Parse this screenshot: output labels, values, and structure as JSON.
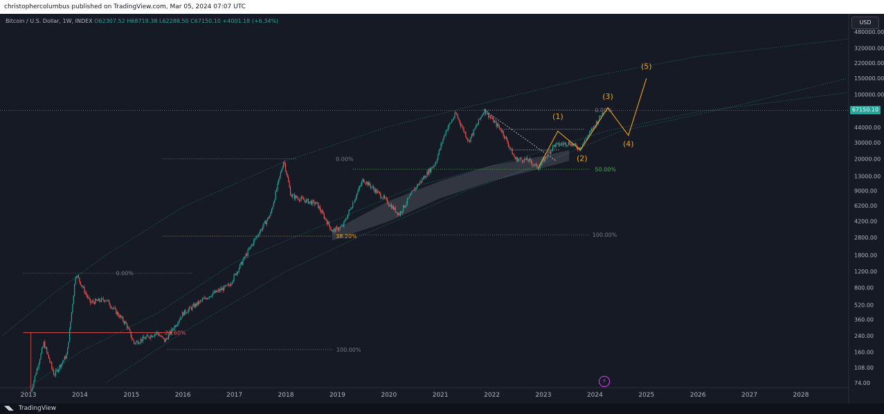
{
  "header": {
    "publisher_line": "christophercolumbus published on TradingView.com, Mar 05, 2024 07:07 UTC"
  },
  "legend": {
    "symbol": "Bitcoin / U.S. Dollar, 1W, INDEX",
    "open": "O62307.52",
    "high": "H68719.38",
    "low": "L62288.50",
    "close": "C67150.10",
    "change": "+4001.18 (+6.34%)"
  },
  "currency_button": "USD",
  "last_price_tag": "67150.10",
  "footer": {
    "brand": "TradingView"
  },
  "colors": {
    "background": "#161a25",
    "candle_up": "#26a69a",
    "candle_down": "#ef5350",
    "fib_gray": "#787b86",
    "fib_orange": "#f7a21b",
    "fib_green": "#4caf50",
    "wave_orange": "#f7a21b",
    "channel_fill": "#b2b5be",
    "price_line": "#26a69a"
  },
  "icons": {
    "flash": "lightning-icon"
  },
  "chart_data": {
    "type": "candlestick",
    "symbol": "Bitcoin / U.S. Dollar, 1W, INDEX",
    "y_scale": "log",
    "x_ticks": [
      "2013",
      "2014",
      "2015",
      "2016",
      "2017",
      "2018",
      "2019",
      "2020",
      "2021",
      "2022",
      "2023",
      "2024",
      "2025",
      "2026",
      "2027",
      "2028"
    ],
    "y_ticks": [
      480000,
      320000,
      220000,
      150000,
      100000,
      67150.1,
      44000,
      30000,
      20000,
      13000,
      9000,
      6200,
      4200,
      2800,
      1800,
      1200,
      800,
      520,
      360,
      240,
      160,
      108,
      74
    ],
    "y_tick_labels": [
      "480000.00",
      "320000.00",
      "220000.00",
      "150000.00",
      "100000.00",
      "67150.10",
      "44000.00",
      "30000.00",
      "20000.00",
      "13000.00",
      "9000.00",
      "6200.00",
      "4200.00",
      "2800.00",
      "1800.00",
      "1200.00",
      "800.00",
      "520.00",
      "360.00",
      "240.00",
      "160.00",
      "108.00",
      "74.00"
    ],
    "price_path": [
      {
        "date": "2013.05",
        "price": 60
      },
      {
        "date": "2013.3",
        "price": 200
      },
      {
        "date": "2013.5",
        "price": 90
      },
      {
        "date": "2013.75",
        "price": 150
      },
      {
        "date": "2013.92",
        "price": 1150
      },
      {
        "date": "2014.2",
        "price": 550
      },
      {
        "date": "2014.5",
        "price": 600
      },
      {
        "date": "2014.9",
        "price": 320
      },
      {
        "date": "2015.05",
        "price": 200
      },
      {
        "date": "2015.5",
        "price": 260
      },
      {
        "date": "2015.65",
        "price": 210
      },
      {
        "date": "2016.0",
        "price": 420
      },
      {
        "date": "2016.5",
        "price": 650
      },
      {
        "date": "2016.9",
        "price": 850
      },
      {
        "date": "2017.4",
        "price": 2700
      },
      {
        "date": "2017.7",
        "price": 5000
      },
      {
        "date": "2017.96",
        "price": 19500
      },
      {
        "date": "2018.1",
        "price": 8000
      },
      {
        "date": "2018.4",
        "price": 7000
      },
      {
        "date": "2018.6",
        "price": 6500
      },
      {
        "date": "2018.9",
        "price": 3300
      },
      {
        "date": "2019.1",
        "price": 3700
      },
      {
        "date": "2019.5",
        "price": 12000
      },
      {
        "date": "2019.9",
        "price": 7500
      },
      {
        "date": "2020.2",
        "price": 5000
      },
      {
        "date": "2020.5",
        "price": 9500
      },
      {
        "date": "2020.9",
        "price": 18000
      },
      {
        "date": "2021.1",
        "price": 40000
      },
      {
        "date": "2021.3",
        "price": 62000
      },
      {
        "date": "2021.55",
        "price": 31000
      },
      {
        "date": "2021.85",
        "price": 68000
      },
      {
        "date": "2022.2",
        "price": 40000
      },
      {
        "date": "2022.45",
        "price": 20000
      },
      {
        "date": "2022.7",
        "price": 19500
      },
      {
        "date": "2022.9",
        "price": 16000
      },
      {
        "date": "2023.2",
        "price": 28000
      },
      {
        "date": "2023.5",
        "price": 30000
      },
      {
        "date": "2023.7",
        "price": 26000
      },
      {
        "date": "2023.95",
        "price": 42000
      },
      {
        "date": "2024.18",
        "price": 67150
      }
    ],
    "fib_retracements": [
      {
        "levels": [
          "0.00%",
          "23.60%",
          "100.00%"
        ]
      },
      {
        "levels": [
          "0.00%",
          "38.20%",
          "100.00%"
        ]
      },
      {
        "levels": [
          "0.00%",
          "50.00%",
          "100.00%"
        ]
      }
    ],
    "fib_labels": [
      {
        "text": "0.00%",
        "price": 1150,
        "color": "#787b86"
      },
      {
        "text": "23.60%",
        "price": 260,
        "color": "#ef5350"
      },
      {
        "text": "100.00%",
        "price": 170,
        "color": "#787b86"
      },
      {
        "text": "0.00%",
        "price": 20000,
        "color": "#787b86"
      },
      {
        "text": "38.20%",
        "price": 2900,
        "color": "#f7a21b"
      },
      {
        "text": "100.00%",
        "price": 3000,
        "color": "#787b86"
      },
      {
        "text": "0.00%",
        "price": 68000,
        "color": "#787b86"
      },
      {
        "text": "50.00%",
        "price": 15500,
        "color": "#4caf50"
      }
    ],
    "elliott_waves": [
      {
        "label": "(1)",
        "date": "2023.28",
        "price": 44000
      },
      {
        "label": "(2)",
        "date": "2023.75",
        "price": 25000
      },
      {
        "label": "(3)",
        "date": "2024.25",
        "price": 73000
      },
      {
        "label": "(4)",
        "date": "2024.65",
        "price": 36000
      },
      {
        "label": "(5)",
        "date": "2025.0",
        "price": 160000
      }
    ],
    "last_price": 67150.1
  }
}
